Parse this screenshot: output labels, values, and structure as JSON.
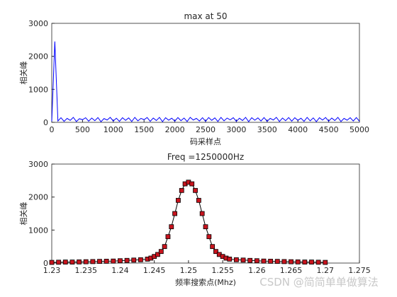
{
  "chart_data": [
    {
      "type": "line",
      "title": "max at 50",
      "xlabel": "码采样点",
      "ylabel": "相关峰",
      "xlim": [
        0,
        5000
      ],
      "xticks": [
        0,
        500,
        1000,
        1500,
        2000,
        2500,
        3000,
        3500,
        4000,
        4500,
        5000
      ],
      "ylim": [
        0,
        3000
      ],
      "yticks": [
        0,
        1000,
        2000,
        3000
      ],
      "series": [
        {
          "color": "#0000ff",
          "x": [
            0,
            50,
            100,
            150,
            200,
            250,
            300,
            350,
            400,
            450,
            500,
            550,
            600,
            650,
            700,
            750,
            800,
            850,
            900,
            950,
            1000,
            1050,
            1100,
            1150,
            1200,
            1250,
            1300,
            1350,
            1400,
            1450,
            1500,
            1550,
            1600,
            1650,
            1700,
            1750,
            1800,
            1850,
            1900,
            1950,
            2000,
            2050,
            2100,
            2150,
            2200,
            2250,
            2300,
            2350,
            2400,
            2450,
            2500,
            2550,
            2600,
            2650,
            2700,
            2750,
            2800,
            2850,
            2900,
            2950,
            3000,
            3050,
            3100,
            3150,
            3200,
            3250,
            3300,
            3350,
            3400,
            3450,
            3500,
            3550,
            3600,
            3650,
            3700,
            3750,
            3800,
            3850,
            3900,
            3950,
            4000,
            4050,
            4100,
            4150,
            4200,
            4250,
            4300,
            4350,
            4400,
            4450,
            4500,
            4550,
            4600,
            4650,
            4700,
            4750,
            4800,
            4850,
            4900,
            4950,
            5000
          ],
          "values": [
            30,
            2450,
            40,
            140,
            30,
            120,
            60,
            150,
            25,
            110,
            80,
            140,
            35,
            130,
            50,
            145,
            20,
            115,
            70,
            150,
            40,
            125,
            30,
            140,
            60,
            135,
            25,
            150,
            45,
            120,
            80,
            145,
            30,
            130,
            55,
            150,
            20,
            140,
            65,
            125,
            35,
            145,
            50,
            130,
            25,
            150,
            70,
            120,
            40,
            140,
            30,
            145,
            60,
            135,
            25,
            150,
            45,
            130,
            75,
            140,
            30,
            125,
            55,
            150,
            20,
            140,
            65,
            135,
            40,
            145,
            30,
            120,
            70,
            150,
            25,
            130,
            50,
            145,
            35,
            140,
            60,
            125,
            30,
            150,
            45,
            135,
            20,
            140,
            70,
            145,
            35,
            130,
            55,
            150,
            25,
            120,
            65,
            140,
            40,
            145,
            30
          ]
        }
      ]
    },
    {
      "type": "line",
      "title": "Freq =1250000Hz",
      "xlabel": "频率搜索点(Mhz)",
      "ylabel": "相关峰",
      "xlim": [
        1.23,
        1.275
      ],
      "xticks": [
        1.23,
        1.235,
        1.24,
        1.245,
        1.25,
        1.255,
        1.26,
        1.265,
        1.27,
        1.275
      ],
      "ylim": [
        0,
        3000
      ],
      "yticks": [
        0,
        1000,
        2000,
        3000
      ],
      "marker": "square",
      "series": [
        {
          "color": "#000000",
          "marker_color": "#c8141e",
          "x": [
            1.23,
            1.231,
            1.232,
            1.233,
            1.234,
            1.235,
            1.236,
            1.237,
            1.238,
            1.239,
            1.24,
            1.241,
            1.242,
            1.243,
            1.244,
            1.2445,
            1.245,
            1.2455,
            1.246,
            1.2465,
            1.247,
            1.2475,
            1.248,
            1.2485,
            1.249,
            1.2495,
            1.25,
            1.2505,
            1.251,
            1.2515,
            1.252,
            1.2525,
            1.253,
            1.2535,
            1.254,
            1.2545,
            1.255,
            1.2555,
            1.256,
            1.257,
            1.258,
            1.259,
            1.26,
            1.261,
            1.262,
            1.263,
            1.264,
            1.265,
            1.266,
            1.267,
            1.268,
            1.269,
            1.27
          ],
          "values": [
            20,
            25,
            30,
            30,
            35,
            40,
            45,
            50,
            55,
            60,
            70,
            80,
            90,
            100,
            120,
            150,
            200,
            260,
            350,
            500,
            800,
            1100,
            1500,
            1900,
            2200,
            2400,
            2450,
            2400,
            2200,
            1900,
            1500,
            1100,
            800,
            500,
            350,
            260,
            200,
            150,
            120,
            100,
            90,
            80,
            70,
            60,
            55,
            50,
            45,
            40,
            35,
            30,
            30,
            25,
            20
          ]
        }
      ]
    }
  ],
  "watermark": "CSDN @简简单单做算法"
}
